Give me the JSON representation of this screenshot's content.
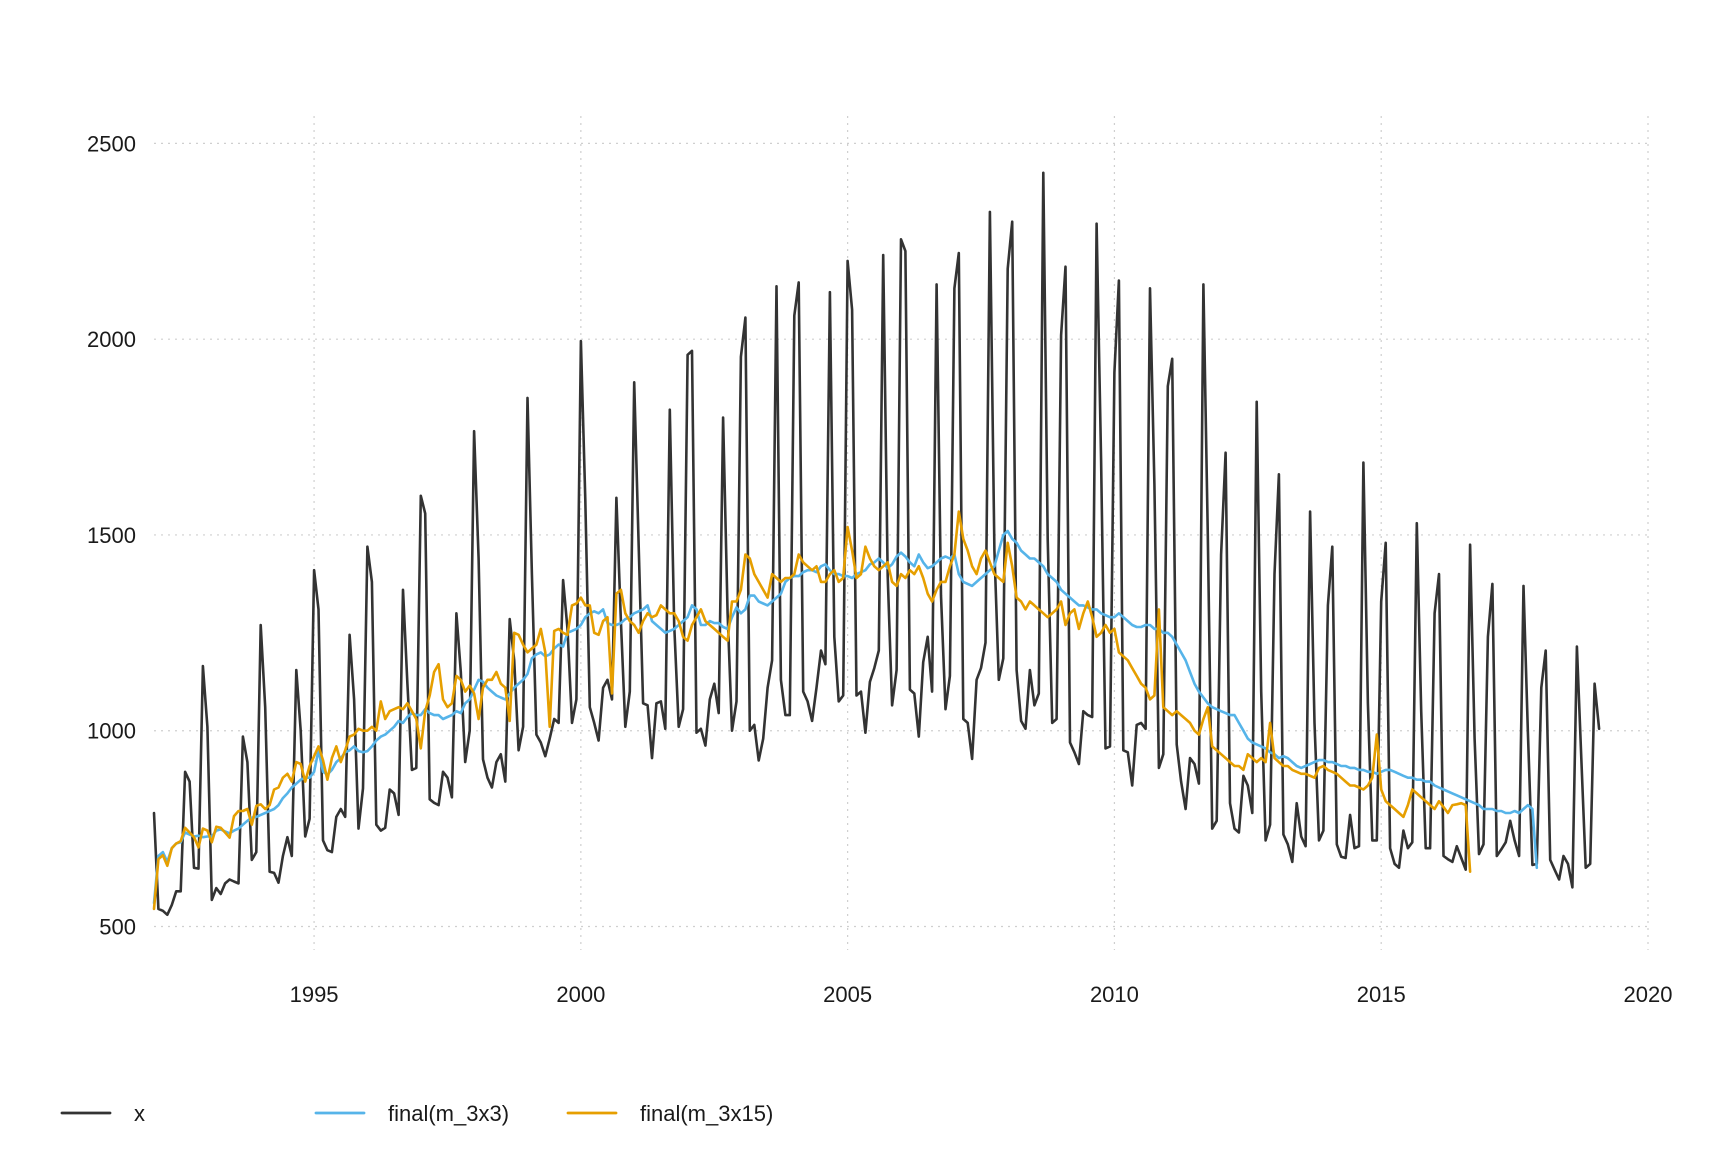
{
  "chart_data": {
    "type": "line",
    "title": "",
    "xlabel": "",
    "ylabel": "",
    "xlim": [
      1992,
      2020
    ],
    "ylim": [
      440,
      2570
    ],
    "x_ticks": [
      1995,
      2000,
      2005,
      2010,
      2015,
      2020
    ],
    "y_ticks": [
      500,
      1000,
      1500,
      2000,
      2500
    ],
    "x_tick_labels": [
      "1995",
      "2000",
      "2005",
      "2010",
      "2015",
      "2020"
    ],
    "y_tick_labels": [
      "500",
      "1000",
      "1500",
      "2000",
      "2500"
    ],
    "grid": true,
    "legend_position": "bottom",
    "frequency": 12,
    "start": 1992,
    "series": [
      {
        "name": "x",
        "color": "#333333",
        "values": [
          790,
          545,
          540,
          530,
          555,
          590,
          590,
          895,
          870,
          650,
          648,
          1165,
          1010,
          568,
          598,
          583,
          610,
          620,
          615,
          610,
          985,
          920,
          670,
          690,
          1270,
          1060,
          640,
          637,
          612,
          680,
          728,
          680,
          1155,
          1000,
          730,
          775,
          1410,
          1310,
          720,
          695,
          690,
          780,
          800,
          780,
          1245,
          1080,
          750,
          853,
          1470,
          1380,
          760,
          745,
          752,
          850,
          840,
          785,
          1360,
          1120,
          900,
          905,
          1600,
          1555,
          825,
          816,
          810,
          895,
          880,
          830,
          1300,
          1150,
          920,
          1000,
          1765,
          1440,
          927,
          880,
          855,
          920,
          940,
          870,
          1285,
          1180,
          950,
          1010,
          1850,
          1400,
          990,
          970,
          935,
          980,
          1030,
          1020,
          1385,
          1260,
          1020,
          1080,
          1995,
          1590,
          1060,
          1020,
          975,
          1110,
          1130,
          1080,
          1595,
          1280,
          1010,
          1100,
          1890,
          1470,
          1070,
          1065,
          930,
          1070,
          1075,
          1005,
          1820,
          1270,
          1010,
          1055,
          1960,
          1970,
          995,
          1005,
          962,
          1080,
          1120,
          1045,
          1800,
          1300,
          1000,
          1075,
          1955,
          2055,
          1000,
          1015,
          924,
          980,
          1110,
          1180,
          2135,
          1130,
          1040,
          1040,
          2060,
          2145,
          1100,
          1075,
          1025,
          1110,
          1205,
          1170,
          2120,
          1240,
          1075,
          1090,
          2200,
          2075,
          1090,
          1100,
          995,
          1125,
          1160,
          1205,
          2215,
          1395,
          1065,
          1155,
          2255,
          2225,
          1105,
          1095,
          985,
          1175,
          1240,
          1100,
          2140,
          1345,
          1055,
          1140,
          2130,
          2220,
          1030,
          1020,
          928,
          1130,
          1160,
          1225,
          2325,
          1460,
          1130,
          1185,
          2180,
          2300,
          1155,
          1025,
          1005,
          1155,
          1065,
          1095,
          2425,
          1490,
          1020,
          1030,
          2010,
          2185,
          970,
          945,
          915,
          1050,
          1040,
          1035,
          2295,
          1690,
          955,
          960,
          1915,
          2150,
          950,
          945,
          860,
          1015,
          1020,
          1005,
          2130,
          1630,
          905,
          940,
          1880,
          1950,
          965,
          870,
          800,
          930,
          915,
          865,
          2140,
          1500,
          750,
          770,
          1450,
          1710,
          815,
          750,
          740,
          885,
          860,
          790,
          1840,
          1100,
          720,
          760,
          1400,
          1655,
          735,
          710,
          665,
          815,
          730,
          705,
          1560,
          1020,
          720,
          745,
          1320,
          1470,
          710,
          678,
          675,
          785,
          700,
          705,
          1685,
          1070,
          720,
          720,
          1330,
          1480,
          700,
          660,
          650,
          745,
          700,
          715,
          1530,
          1050,
          700,
          700,
          1300,
          1400,
          680,
          672,
          665,
          705,
          675,
          645,
          1475,
          980,
          685,
          710,
          1240,
          1375,
          680,
          697,
          715,
          770,
          720,
          680,
          1370,
          995,
          657,
          660,
          1110,
          1205,
          670,
          645,
          620,
          680,
          660,
          600,
          1215,
          930,
          650,
          660,
          1120,
          1005
        ]
      },
      {
        "name": "final(m_3x3)",
        "color": "#56b4e9",
        "values": [
          560,
          680,
          690,
          665,
          700,
          712,
          715,
          740,
          735,
          730,
          732,
          728,
          730,
          730,
          745,
          748,
          743,
          738,
          745,
          750,
          760,
          770,
          778,
          780,
          785,
          790,
          795,
          800,
          810,
          828,
          840,
          855,
          865,
          875,
          880,
          880,
          895,
          950,
          895,
          888,
          900,
          920,
          930,
          945,
          950,
          960,
          948,
          945,
          948,
          960,
          975,
          985,
          990,
          1000,
          1010,
          1025,
          1020,
          1035,
          1045,
          1040,
          1040,
          1055,
          1045,
          1040,
          1040,
          1030,
          1035,
          1040,
          1050,
          1045,
          1070,
          1080,
          1105,
          1130,
          1125,
          1110,
          1100,
          1090,
          1085,
          1080,
          1095,
          1110,
          1120,
          1130,
          1145,
          1185,
          1195,
          1200,
          1190,
          1195,
          1210,
          1220,
          1215,
          1250,
          1255,
          1260,
          1270,
          1290,
          1300,
          1305,
          1300,
          1310,
          1275,
          1270,
          1270,
          1275,
          1285,
          1290,
          1300,
          1305,
          1310,
          1320,
          1280,
          1270,
          1260,
          1250,
          1255,
          1260,
          1270,
          1280,
          1290,
          1320,
          1310,
          1270,
          1270,
          1280,
          1275,
          1275,
          1265,
          1260,
          1290,
          1315,
          1300,
          1310,
          1345,
          1345,
          1330,
          1325,
          1320,
          1330,
          1340,
          1350,
          1380,
          1390,
          1395,
          1395,
          1405,
          1410,
          1410,
          1405,
          1420,
          1425,
          1410,
          1400,
          1400,
          1395,
          1395,
          1390,
          1400,
          1405,
          1410,
          1425,
          1430,
          1440,
          1430,
          1415,
          1425,
          1445,
          1455,
          1445,
          1430,
          1420,
          1450,
          1430,
          1415,
          1420,
          1430,
          1440,
          1445,
          1440,
          1450,
          1400,
          1380,
          1375,
          1370,
          1380,
          1390,
          1400,
          1410,
          1420,
          1460,
          1500,
          1510,
          1490,
          1480,
          1460,
          1450,
          1440,
          1440,
          1430,
          1420,
          1400,
          1390,
          1380,
          1360,
          1350,
          1340,
          1330,
          1320,
          1320,
          1315,
          1310,
          1310,
          1300,
          1295,
          1290,
          1290,
          1300,
          1290,
          1280,
          1270,
          1265,
          1265,
          1270,
          1270,
          1260,
          1260,
          1250,
          1250,
          1240,
          1220,
          1200,
          1180,
          1150,
          1120,
          1100,
          1085,
          1070,
          1060,
          1055,
          1050,
          1045,
          1040,
          1040,
          1020,
          1000,
          980,
          970,
          965,
          960,
          955,
          945,
          940,
          930,
          935,
          930,
          920,
          910,
          905,
          910,
          915,
          920,
          925,
          925,
          920,
          920,
          915,
          910,
          910,
          905,
          905,
          900,
          900,
          895,
          895,
          890,
          895,
          900,
          900,
          895,
          890,
          885,
          880,
          880,
          875,
          875,
          870,
          870,
          860,
          855,
          850,
          845,
          840,
          835,
          830,
          825,
          820,
          815,
          810,
          800,
          800,
          800,
          795,
          795,
          790,
          790,
          795,
          790,
          800,
          810,
          800,
          650
        ]
      },
      {
        "name": "final(m_3x15)",
        "color": "#e69f00",
        "values": [
          545,
          672,
          682,
          655,
          700,
          712,
          718,
          752,
          740,
          728,
          702,
          750,
          745,
          715,
          755,
          752,
          740,
          727,
          782,
          795,
          795,
          800,
          760,
          808,
          812,
          800,
          810,
          850,
          855,
          880,
          890,
          870,
          920,
          915,
          870,
          910,
          935,
          960,
          925,
          875,
          930,
          960,
          920,
          950,
          985,
          990,
          1005,
          1000,
          1000,
          1010,
          1000,
          1075,
          1030,
          1050,
          1055,
          1060,
          1055,
          1070,
          1050,
          1030,
          955,
          1050,
          1090,
          1150,
          1170,
          1080,
          1060,
          1070,
          1140,
          1130,
          1100,
          1115,
          1095,
          1030,
          1110,
          1130,
          1130,
          1150,
          1120,
          1110,
          1025,
          1250,
          1245,
          1220,
          1200,
          1210,
          1220,
          1260,
          1200,
          1010,
          1255,
          1260,
          1250,
          1245,
          1320,
          1325,
          1340,
          1320,
          1320,
          1250,
          1245,
          1280,
          1290,
          1095,
          1350,
          1360,
          1300,
          1280,
          1270,
          1250,
          1280,
          1300,
          1290,
          1295,
          1320,
          1310,
          1300,
          1300,
          1280,
          1240,
          1230,
          1270,
          1290,
          1310,
          1280,
          1270,
          1260,
          1250,
          1240,
          1230,
          1330,
          1330,
          1360,
          1450,
          1440,
          1400,
          1380,
          1360,
          1340,
          1400,
          1390,
          1380,
          1390,
          1390,
          1400,
          1450,
          1430,
          1420,
          1410,
          1420,
          1380,
          1380,
          1400,
          1410,
          1380,
          1390,
          1520,
          1460,
          1390,
          1400,
          1470,
          1440,
          1420,
          1410,
          1420,
          1430,
          1380,
          1370,
          1400,
          1390,
          1410,
          1400,
          1420,
          1390,
          1350,
          1330,
          1360,
          1380,
          1380,
          1420,
          1450,
          1560,
          1490,
          1460,
          1420,
          1400,
          1440,
          1460,
          1430,
          1400,
          1390,
          1380,
          1480,
          1420,
          1340,
          1330,
          1310,
          1330,
          1320,
          1310,
          1300,
          1290,
          1300,
          1310,
          1330,
          1270,
          1300,
          1310,
          1260,
          1300,
          1330,
          1290,
          1240,
          1250,
          1270,
          1250,
          1260,
          1200,
          1190,
          1180,
          1160,
          1140,
          1120,
          1110,
          1080,
          1090,
          1310,
          1060,
          1050,
          1040,
          1050,
          1040,
          1030,
          1020,
          1000,
          990,
          1030,
          1060,
          960,
          950,
          940,
          930,
          920,
          910,
          910,
          900,
          940,
          930,
          920,
          930,
          920,
          1020,
          930,
          920,
          910,
          910,
          900,
          895,
          890,
          890,
          885,
          880,
          905,
          910,
          900,
          895,
          890,
          880,
          870,
          860,
          860,
          855,
          850,
          860,
          880,
          990,
          850,
          820,
          810,
          800,
          790,
          780,
          810,
          850,
          840,
          830,
          820,
          810,
          800,
          820,
          805,
          790,
          810,
          812,
          815,
          810,
          640
        ]
      }
    ]
  }
}
